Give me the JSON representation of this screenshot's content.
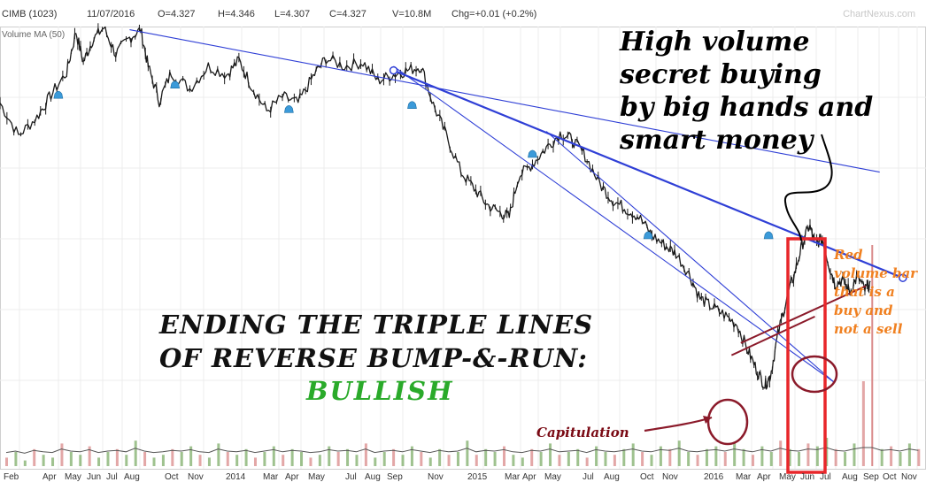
{
  "header": {
    "symbol": "CIMB (1023)",
    "date": "11/07/2016",
    "open": "O=4.327",
    "high": "H=4.346",
    "low": "L=4.307",
    "close": "C=4.327",
    "volume": "V=10.8M",
    "change": "Chg=+0.01 (+0.2%)",
    "watermark": "ChartNexus.com",
    "volume_ma": "Volume MA (50)"
  },
  "annotations": {
    "title_line1": "ENDING THE TRIPLE LINES",
    "title_line2": "OF REVERSE BUMP-&-RUN:",
    "bullish": "BULLISH",
    "high_volume": [
      "High volume",
      "secret buying",
      "by big hands and",
      "smart money"
    ],
    "red_volume": [
      "Red",
      "volume bar",
      "that is a",
      "buy and",
      "not a sell"
    ],
    "capitulation": "Capitulation"
  },
  "colors": {
    "price": "#1a1a1a",
    "trendline": "#2f3fd6",
    "box": "#e8262a",
    "circle": "#8b1a2a",
    "volume_up": "#7fae6a",
    "volume_down": "#d98a8a",
    "bullish": "#2aaa2a",
    "red_note": "#f08020",
    "marker": "#3b9ad9"
  },
  "chart_data": {
    "type": "line",
    "title": "CIMB (1023)",
    "xlabel": "",
    "ylabel": "",
    "grid": true,
    "legend": "none",
    "x_tick_labels": [
      "Feb",
      "Apr",
      "May",
      "Jun",
      "Jul",
      "Aug",
      "Oct",
      "Nov",
      "2014",
      "Mar",
      "Apr",
      "May",
      "Jul",
      "Aug",
      "Sep",
      "Nov",
      "2015",
      "Mar",
      "Apr",
      "May",
      "Jul",
      "Aug",
      "Oct",
      "Nov",
      "2016",
      "Mar",
      "Apr",
      "May",
      "Jun",
      "Jul",
      "Aug",
      "Sep",
      "Oct",
      "Nov"
    ],
    "price_path": [
      [
        0.0,
        0.62
      ],
      [
        0.02,
        0.46
      ],
      [
        0.04,
        0.55
      ],
      [
        0.055,
        0.66
      ],
      [
        0.072,
        0.77
      ],
      [
        0.082,
        0.97
      ],
      [
        0.09,
        0.82
      ],
      [
        0.1,
        0.93
      ],
      [
        0.112,
        0.99
      ],
      [
        0.125,
        0.86
      ],
      [
        0.14,
        0.94
      ],
      [
        0.152,
        0.98
      ],
      [
        0.16,
        0.8
      ],
      [
        0.172,
        0.63
      ],
      [
        0.185,
        0.77
      ],
      [
        0.205,
        0.69
      ],
      [
        0.225,
        0.8
      ],
      [
        0.245,
        0.76
      ],
      [
        0.258,
        0.83
      ],
      [
        0.272,
        0.7
      ],
      [
        0.288,
        0.58
      ],
      [
        0.305,
        0.65
      ],
      [
        0.322,
        0.62
      ],
      [
        0.338,
        0.75
      ],
      [
        0.352,
        0.84
      ],
      [
        0.372,
        0.8
      ],
      [
        0.392,
        0.82
      ],
      [
        0.408,
        0.73
      ],
      [
        0.425,
        0.76
      ],
      [
        0.44,
        0.78
      ],
      [
        0.455,
        0.8
      ],
      [
        0.468,
        0.61
      ],
      [
        0.482,
        0.46
      ],
      [
        0.498,
        0.28
      ],
      [
        0.512,
        0.2
      ],
      [
        0.526,
        0.12
      ],
      [
        0.54,
        0.08
      ],
      [
        0.55,
        0.06
      ],
      [
        0.56,
        0.26
      ],
      [
        0.575,
        0.32
      ],
      [
        0.59,
        0.4
      ],
      [
        0.605,
        0.47
      ],
      [
        0.618,
        0.44
      ],
      [
        0.632,
        0.36
      ],
      [
        0.648,
        0.22
      ],
      [
        0.662,
        0.14
      ],
      [
        0.676,
        0.1
      ],
      [
        0.69,
        0.06
      ],
      [
        0.704,
        -0.03
      ],
      [
        0.718,
        -0.08
      ],
      [
        0.73,
        -0.12
      ],
      [
        0.744,
        -0.22
      ],
      [
        0.756,
        -0.34
      ],
      [
        0.768,
        -0.38
      ],
      [
        0.782,
        -0.42
      ],
      [
        0.796,
        -0.47
      ],
      [
        0.808,
        -0.6
      ],
      [
        0.818,
        -0.7
      ],
      [
        0.826,
        -0.77
      ],
      [
        0.832,
        -0.72
      ],
      [
        0.84,
        -0.52
      ],
      [
        0.85,
        -0.33
      ],
      [
        0.858,
        -0.22
      ],
      [
        0.866,
        -0.08
      ],
      [
        0.874,
        0.02
      ],
      [
        0.88,
        -0.07
      ],
      [
        0.888,
        -0.05
      ],
      [
        0.896,
        -0.19
      ],
      [
        0.902,
        -0.27
      ],
      [
        0.91,
        -0.25
      ],
      [
        0.918,
        -0.31
      ],
      [
        0.926,
        -0.23
      ],
      [
        0.934,
        -0.3
      ],
      [
        0.94,
        -0.26
      ]
    ],
    "trendlines": [
      {
        "from": [
          0.14,
          0.98
        ],
        "to": [
          0.95,
          0.28
        ]
      },
      {
        "from": [
          0.425,
          0.78
        ],
        "to": [
          0.975,
          -0.24
        ]
      },
      {
        "from": [
          0.425,
          0.8
        ],
        "to": [
          0.9,
          -0.75
        ]
      },
      {
        "from": [
          0.59,
          0.48
        ],
        "to": [
          0.9,
          -0.75
        ]
      },
      {
        "from": [
          0.79,
          -0.62
        ],
        "to": [
          0.88,
          -0.43
        ]
      },
      {
        "from": [
          0.8,
          -0.56
        ],
        "to": [
          0.935,
          -0.28
        ]
      }
    ],
    "markers": [
      [
        0.063,
        0.66
      ],
      [
        0.189,
        0.71
      ],
      [
        0.312,
        0.59
      ],
      [
        0.445,
        0.61
      ],
      [
        0.575,
        0.37
      ],
      [
        0.7,
        -0.03
      ],
      [
        0.83,
        -0.03
      ]
    ],
    "volume_values": [
      3,
      5,
      2,
      6,
      4,
      3,
      8,
      5,
      4,
      7,
      3,
      5,
      6,
      4,
      9,
      5,
      3,
      4,
      6,
      5,
      7,
      4,
      3,
      8,
      5,
      4,
      6,
      3,
      5,
      7,
      4,
      6,
      5,
      3,
      4,
      7,
      5,
      6,
      4,
      8,
      3,
      5,
      6,
      4,
      7,
      5,
      3,
      6,
      4,
      5,
      9,
      4,
      6,
      5,
      7,
      4,
      3,
      6,
      5,
      8,
      4,
      5,
      6,
      3,
      7,
      5,
      4,
      6,
      8,
      5,
      4,
      7,
      6,
      9,
      5,
      4,
      6,
      7,
      5,
      8,
      6,
      4,
      7,
      5,
      9,
      6,
      5,
      8,
      7,
      10,
      6,
      5,
      8,
      30,
      100,
      6,
      7,
      5,
      8,
      6
    ],
    "volume_spike": "Red volume bar that is a buy and not a sell"
  }
}
